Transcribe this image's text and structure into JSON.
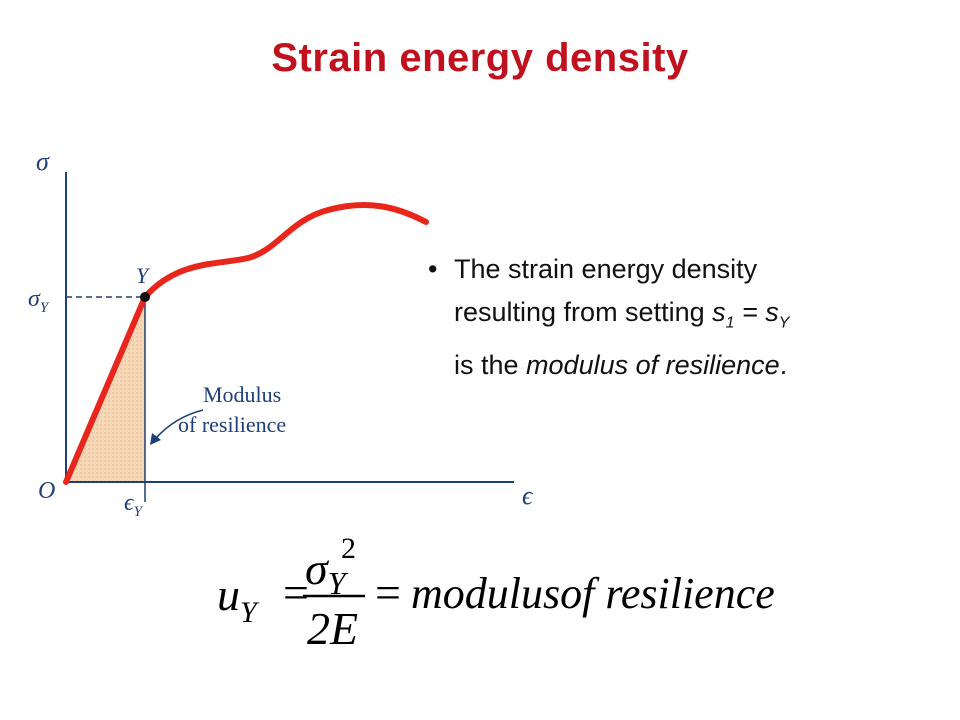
{
  "slide": {
    "title": "Strain energy density"
  },
  "figure": {
    "y_axis_label": "σ",
    "x_axis_label": "ϵ",
    "origin_label": "O",
    "yield_point_label": "Y",
    "sigma_y_main": "σ",
    "sigma_y_sub": "Y",
    "eps_y_main": "ϵ",
    "eps_y_sub": "Y",
    "area_label_line1": "Modulus",
    "area_label_line2": "of resilience",
    "curve_color": "#e8261c",
    "area_fill_color": "#f6d7b6",
    "axis_color": "#1f3f7a"
  },
  "bullet": {
    "line1": "The strain energy density",
    "line2_prefix": "resulting from setting ",
    "s1_main": "s",
    "s1_sub": "1",
    "equals": " = ",
    "sy_main": "s",
    "sy_sub": "Y",
    "line3_prefix": "is the ",
    "line3_italic": "modulus of resilience",
    "line3_suffix": "."
  },
  "formula": {
    "lhs_main": "u",
    "lhs_sub": "Y",
    "eq1": "=",
    "num_main": "σ",
    "num_sub": "Y",
    "num_sup": "2",
    "den": "2E",
    "eq2": "=",
    "rhs": "modulusof resilience"
  }
}
